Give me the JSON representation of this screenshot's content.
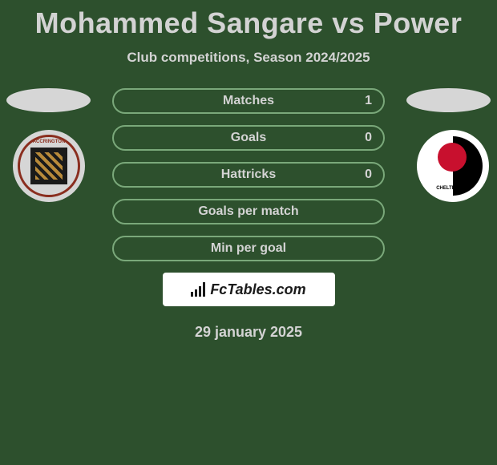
{
  "title": "Mohammed Sangare vs Power",
  "subtitle": "Club competitions, Season 2024/2025",
  "colors": {
    "background": "#2d502d",
    "text": "#d3d3d3",
    "pill_border": "#7aa87a",
    "oval_bg": "#d6d6d6",
    "watermark_bg": "#ffffff",
    "watermark_text": "#1a1a1a"
  },
  "fonts": {
    "title_size": 36,
    "subtitle_size": 17,
    "stat_size": 16,
    "date_size": 18
  },
  "badges": {
    "left": {
      "name": "Accrington Stanley FC",
      "ring_color": "#8a2e1f",
      "bg": "#d6d6d6"
    },
    "right": {
      "name": "Cheltenham Town FC",
      "bg": "#ffffff",
      "accent_red": "#c8102e",
      "accent_black": "#000000"
    }
  },
  "stats": [
    {
      "label": "Matches",
      "value_right": "1"
    },
    {
      "label": "Goals",
      "value_right": "0"
    },
    {
      "label": "Hattricks",
      "value_right": "0"
    },
    {
      "label": "Goals per match",
      "value_right": ""
    },
    {
      "label": "Min per goal",
      "value_right": ""
    }
  ],
  "watermark": "FcTables.com",
  "date": "29 january 2025"
}
